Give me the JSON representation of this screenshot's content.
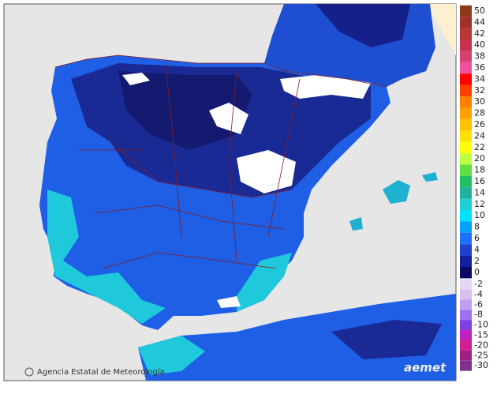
{
  "legend": {
    "entries": [
      {
        "value": 50,
        "color": "#8b3a1a"
      },
      {
        "value": 44,
        "color": "#a03028"
      },
      {
        "value": 42,
        "color": "#b83838"
      },
      {
        "value": 40,
        "color": "#c83050"
      },
      {
        "value": 38,
        "color": "#d84070"
      },
      {
        "value": 36,
        "color": "#f050a0"
      },
      {
        "value": 34,
        "color": "#ff0000"
      },
      {
        "value": 32,
        "color": "#ff4000"
      },
      {
        "value": 30,
        "color": "#ff8000"
      },
      {
        "value": 28,
        "color": "#ffa000"
      },
      {
        "value": 26,
        "color": "#ffc000"
      },
      {
        "value": 24,
        "color": "#ffe000"
      },
      {
        "value": 22,
        "color": "#ffff00"
      },
      {
        "value": 20,
        "color": "#c0ff40"
      },
      {
        "value": 18,
        "color": "#60e040"
      },
      {
        "value": 16,
        "color": "#20c060"
      },
      {
        "value": 14,
        "color": "#20b0a0"
      },
      {
        "value": 12,
        "color": "#20d0d0"
      },
      {
        "value": 10,
        "color": "#00e0ff"
      },
      {
        "value": 8,
        "color": "#00a0ff"
      },
      {
        "value": 6,
        "color": "#2070ff"
      },
      {
        "value": 4,
        "color": "#2040d0"
      },
      {
        "value": 2,
        "color": "#1020a0"
      },
      {
        "value": 0,
        "color": "#0a0a60"
      },
      {
        "value": -2,
        "color": "#e6d8f4"
      },
      {
        "value": -4,
        "color": "#d6c0f0"
      },
      {
        "value": -6,
        "color": "#c0a0f0"
      },
      {
        "value": -8,
        "color": "#a070f0"
      },
      {
        "value": -10,
        "color": "#8040e0"
      },
      {
        "value": -15,
        "color": "#c020c0"
      },
      {
        "value": -20,
        "color": "#d02090"
      },
      {
        "value": -25,
        "color": "#a02080"
      },
      {
        "value": -30,
        "color": "#803090"
      }
    ]
  },
  "credit": "Agencia Estatal de Meteorología",
  "logo": "aemet"
}
